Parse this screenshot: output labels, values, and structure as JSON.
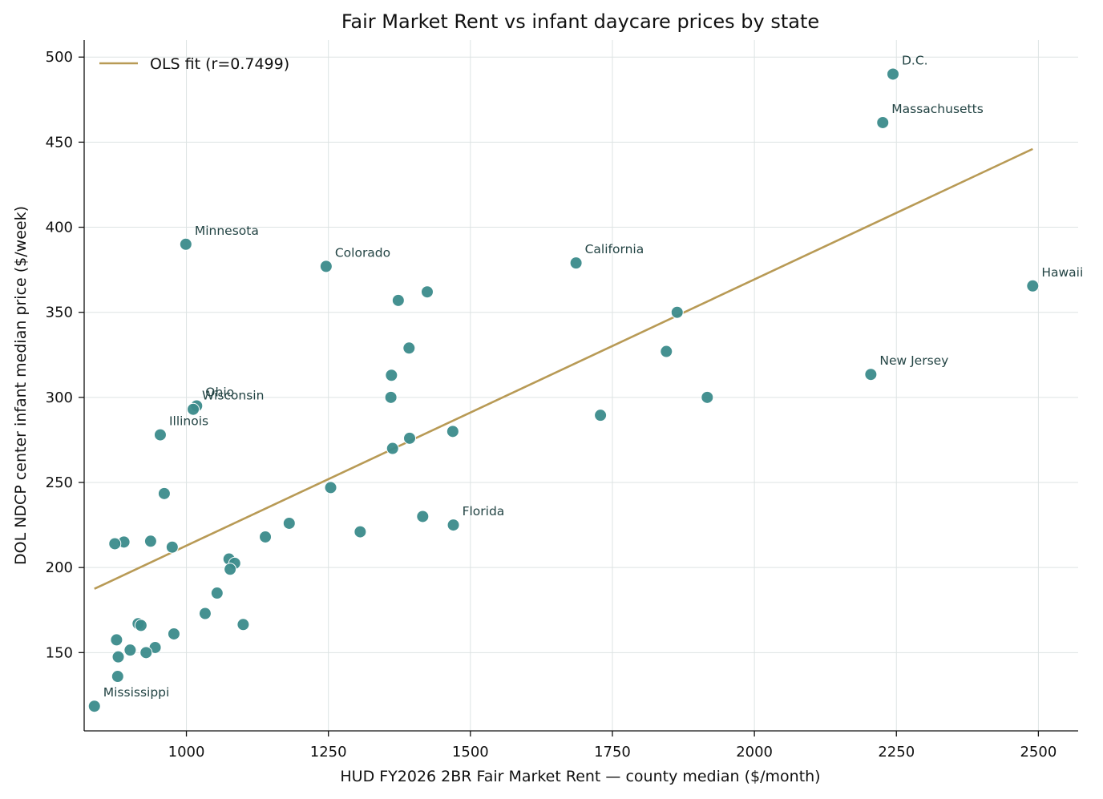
{
  "chart_data": {
    "type": "scatter",
    "title": "Fair Market Rent vs infant daycare prices by state",
    "xlabel": "HUD FY2026 2BR Fair Market Rent — county median ($/month)",
    "ylabel": "DOL NDCP center infant median price ($/week)",
    "xlim": [
      820,
      2570
    ],
    "ylim": [
      104,
      510
    ],
    "xticks": [
      1000,
      1250,
      1500,
      1750,
      2000,
      2250,
      2500
    ],
    "yticks": [
      150,
      200,
      250,
      300,
      350,
      400,
      450,
      500
    ],
    "grid": true,
    "legend_position": "top-left",
    "colors": {
      "points": "#3b8b8b",
      "fit": "#b89a55",
      "labels": "#234444"
    },
    "fit": {
      "label": "OLS fit (r=0.7499)",
      "x": [
        838,
        2490
      ],
      "y": [
        187.5,
        446
      ]
    },
    "points": [
      {
        "x": 2244,
        "y": 490,
        "label": "D.C."
      },
      {
        "x": 2226,
        "y": 461.5,
        "label": "Massachusetts"
      },
      {
        "x": 999,
        "y": 390,
        "label": "Minnesota"
      },
      {
        "x": 1246,
        "y": 377,
        "label": "Colorado"
      },
      {
        "x": 1686,
        "y": 379,
        "label": "California"
      },
      {
        "x": 2490,
        "y": 365.5,
        "label": "Hawaii"
      },
      {
        "x": 2205,
        "y": 313.5,
        "label": "New Jersey"
      },
      {
        "x": 1018,
        "y": 295,
        "label": "Ohio"
      },
      {
        "x": 1012,
        "y": 293,
        "label": "Wisconsin"
      },
      {
        "x": 954,
        "y": 278,
        "label": "Illinois"
      },
      {
        "x": 1470,
        "y": 225,
        "label": "Florida"
      },
      {
        "x": 838,
        "y": 118.5,
        "label": "Mississippi"
      },
      {
        "x": 1424,
        "y": 362,
        "label": ""
      },
      {
        "x": 1373,
        "y": 357,
        "label": ""
      },
      {
        "x": 1864,
        "y": 350,
        "label": ""
      },
      {
        "x": 1392,
        "y": 329,
        "label": ""
      },
      {
        "x": 1845,
        "y": 327,
        "label": ""
      },
      {
        "x": 1361,
        "y": 313,
        "label": ""
      },
      {
        "x": 1360,
        "y": 300,
        "label": ""
      },
      {
        "x": 1917,
        "y": 300,
        "label": ""
      },
      {
        "x": 1729,
        "y": 289.5,
        "label": ""
      },
      {
        "x": 1469,
        "y": 280,
        "label": ""
      },
      {
        "x": 1393,
        "y": 276,
        "label": ""
      },
      {
        "x": 1363,
        "y": 270,
        "label": ""
      },
      {
        "x": 1254,
        "y": 247,
        "label": ""
      },
      {
        "x": 961,
        "y": 243.5,
        "label": ""
      },
      {
        "x": 1416,
        "y": 230,
        "label": ""
      },
      {
        "x": 1181,
        "y": 226,
        "label": ""
      },
      {
        "x": 1306,
        "y": 221,
        "label": ""
      },
      {
        "x": 1139,
        "y": 218,
        "label": ""
      },
      {
        "x": 937,
        "y": 215.5,
        "label": ""
      },
      {
        "x": 890,
        "y": 215,
        "label": ""
      },
      {
        "x": 874,
        "y": 214,
        "label": ""
      },
      {
        "x": 975,
        "y": 212,
        "label": ""
      },
      {
        "x": 1075,
        "y": 205,
        "label": ""
      },
      {
        "x": 1085,
        "y": 202.5,
        "label": ""
      },
      {
        "x": 1077,
        "y": 199,
        "label": ""
      },
      {
        "x": 1054,
        "y": 185,
        "label": ""
      },
      {
        "x": 1033,
        "y": 173,
        "label": ""
      },
      {
        "x": 915,
        "y": 167,
        "label": ""
      },
      {
        "x": 920,
        "y": 166,
        "label": ""
      },
      {
        "x": 1100,
        "y": 166.5,
        "label": ""
      },
      {
        "x": 978,
        "y": 161,
        "label": ""
      },
      {
        "x": 877,
        "y": 157.5,
        "label": ""
      },
      {
        "x": 945,
        "y": 153,
        "label": ""
      },
      {
        "x": 901,
        "y": 151.5,
        "label": ""
      },
      {
        "x": 929,
        "y": 150,
        "label": ""
      },
      {
        "x": 880,
        "y": 147.5,
        "label": ""
      },
      {
        "x": 879,
        "y": 136,
        "label": ""
      }
    ]
  }
}
